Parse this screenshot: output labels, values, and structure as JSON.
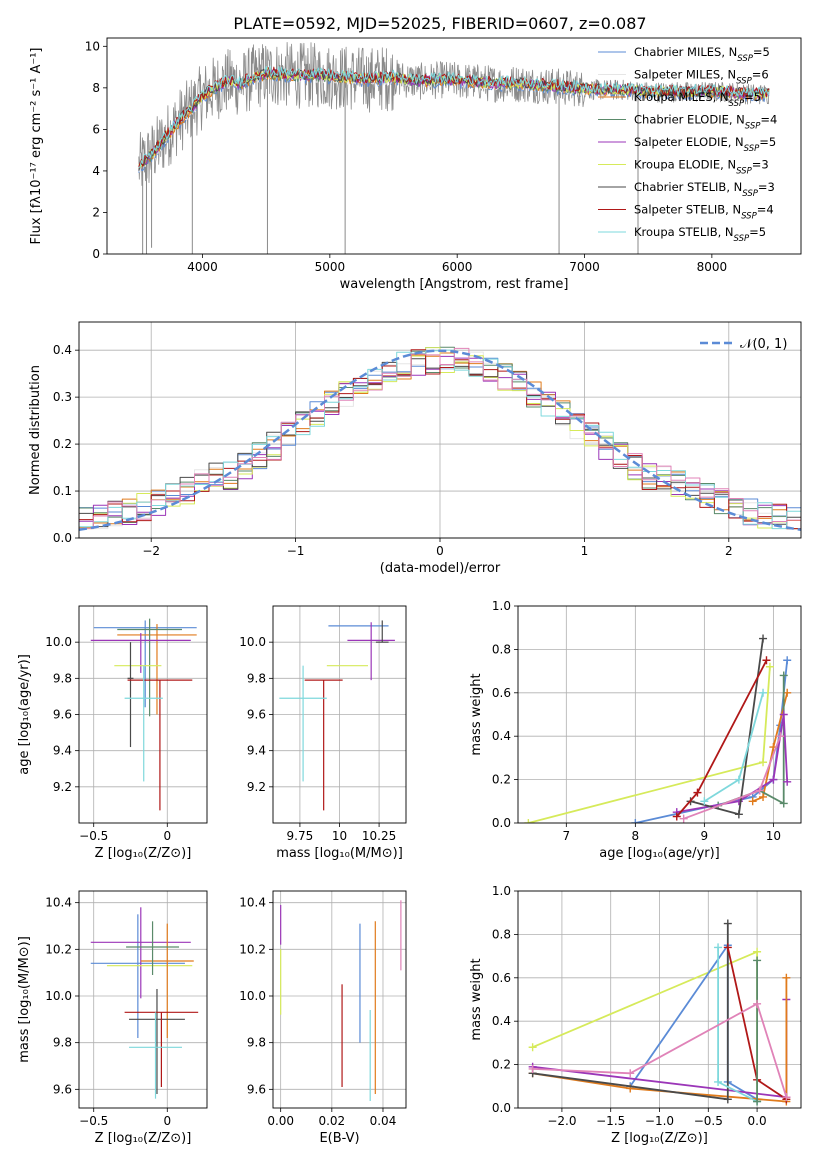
{
  "figure_title": "PLATE=0592, MJD=52025, FIBERID=0607, z=0.087",
  "colors": {
    "Chabrier MILES": "#5b8bd6",
    "Salpeter MILES": "#e6e6e6",
    "Kroupa MILES": "#e07b1c",
    "Chabrier ELODIE": "#5a8a6a",
    "Salpeter ELODIE": "#9b36b8",
    "Kroupa ELODIE": "#d6ea5a",
    "Chabrier STELIB": "#4a4a4a",
    "Salpeter STELIB": "#b01818",
    "Kroupa STELIB": "#7ed8dc",
    "pink": "#e083b8",
    "gray": "#8a8a8a"
  },
  "chart_data": [
    {
      "id": "spectrum",
      "type": "line",
      "xlabel": "wavelength [Angstrom, rest frame]",
      "ylabel": "Flux [fλ10⁻¹⁷ erg cm⁻² s⁻¹ A⁻¹]",
      "xlim": [
        3250,
        8700
      ],
      "ylim": [
        0,
        10.4
      ],
      "xticks": [
        4000,
        5000,
        6000,
        7000,
        8000
      ],
      "yticks": [
        0,
        2,
        4,
        6,
        8,
        10
      ],
      "legend_position": "right",
      "legend": [
        "Chabrier MILES, N_SSP=5",
        "Salpeter MILES, N_SSP=6",
        "Kroupa MILES, N_SSP=5",
        "Chabrier ELODIE, N_SSP=4",
        "Salpeter ELODIE, N_SSP=5",
        "Kroupa ELODIE, N_SSP=3",
        "Chabrier STELIB, N_SSP=3",
        "Salpeter STELIB, N_SSP=4",
        "Kroupa STELIB, N_SSP=5"
      ],
      "data_x": [
        3500,
        3600,
        3700,
        3800,
        3900,
        4000,
        4100,
        4200,
        4300,
        4400,
        4500,
        4700,
        4900,
        5100,
        5300,
        5500,
        5700,
        5900,
        6100,
        6300,
        6500,
        6700,
        6900,
        7100,
        7300,
        7500,
        7700,
        7900,
        8100,
        8300,
        8450
      ],
      "data_y": [
        4.2,
        4.8,
        5.5,
        6.3,
        6.9,
        7.6,
        8.0,
        8.3,
        8.2,
        8.5,
        8.7,
        8.6,
        8.6,
        8.5,
        8.4,
        8.5,
        8.3,
        8.4,
        8.3,
        8.2,
        8.2,
        8.1,
        8.0,
        7.9,
        7.9,
        7.8,
        7.8,
        7.8,
        7.8,
        7.7,
        7.7
      ]
    },
    {
      "id": "residuals",
      "type": "histogram",
      "xlabel": "(data-model)/error",
      "ylabel": "Normed distribution",
      "xlim": [
        -2.5,
        2.5
      ],
      "ylim": [
        0,
        0.46
      ],
      "xticks": [
        -2,
        -1,
        0,
        1,
        2
      ],
      "yticks": [
        0.0,
        0.1,
        0.2,
        0.3,
        0.4
      ],
      "legend": [
        "𝒩(0, 1)"
      ],
      "legend_position": "upper right",
      "bin_width": 0.1,
      "gaussian": {
        "mean": 0,
        "sigma": 1
      }
    },
    {
      "id": "age_vs_Z",
      "type": "errorbar",
      "xlabel": "Z [log₁₀(Z/Z⊙)]",
      "ylabel": "age  [log₁₀(age/yr)]",
      "xlim": [
        -0.6,
        0.27
      ],
      "ylim": [
        9.0,
        10.2
      ],
      "xticks": [
        -0.5,
        0.0
      ],
      "yticks": [
        9.2,
        9.4,
        9.6,
        9.8,
        10.0
      ],
      "points": [
        {
          "series": "Chabrier MILES",
          "x": -0.15,
          "xerr": 0.35,
          "y": 10.08,
          "yerr": [
            0.44,
            0.04
          ]
        },
        {
          "series": "Kroupa MILES",
          "x": -0.07,
          "xerr": 0.27,
          "y": 10.04,
          "yerr": [
            0.44,
            0.06
          ]
        },
        {
          "series": "Chabrier ELODIE",
          "x": -0.12,
          "xerr": 0.22,
          "y": 10.07,
          "yerr": [
            0.48,
            0.06
          ]
        },
        {
          "series": "Salpeter ELODIE",
          "x": -0.18,
          "xerr": 0.34,
          "y": 10.01,
          "yerr": [
            0.18,
            0.04
          ]
        },
        {
          "series": "Kroupa ELODIE",
          "x": -0.2,
          "xerr": 0.16,
          "y": 9.87,
          "yerr": [
            0.0,
            0.0
          ]
        },
        {
          "series": "Chabrier STELIB",
          "x": -0.25,
          "xerr": 0.02,
          "y": 9.8,
          "yerr": [
            0.38,
            0.2
          ]
        },
        {
          "series": "Salpeter STELIB",
          "x": -0.05,
          "xerr": 0.22,
          "y": 9.79,
          "yerr": [
            0.72,
            0.0
          ]
        },
        {
          "series": "Kroupa STELIB",
          "x": -0.16,
          "xerr": 0.13,
          "y": 9.69,
          "yerr": [
            0.46,
            0.18
          ]
        }
      ]
    },
    {
      "id": "age_vs_mass",
      "type": "errorbar",
      "xlabel": "mass [log₁₀(M/M⊙)]",
      "ylabel": "",
      "xlim": [
        9.58,
        10.42
      ],
      "ylim": [
        9.0,
        10.2
      ],
      "xticks": [
        9.75,
        10.0,
        10.25
      ],
      "yticks": [
        9.2,
        9.4,
        9.6,
        9.8,
        10.0
      ],
      "points": [
        {
          "series": "Chabrier MILES",
          "x": 10.12,
          "xerr": 0.19,
          "y": 10.09,
          "yerr": [
            0.0,
            0.0
          ]
        },
        {
          "series": "Salpeter ELODIE",
          "x": 10.2,
          "xerr": 0.15,
          "y": 10.01,
          "yerr": [
            0.22,
            0.1
          ]
        },
        {
          "series": "Kroupa ELODIE",
          "x": 10.05,
          "xerr": 0.13,
          "y": 9.87,
          "yerr": [
            0.0,
            0.0
          ]
        },
        {
          "series": "Chabrier STELIB",
          "x": 10.27,
          "xerr": 0.04,
          "y": 10.0,
          "yerr": [
            0.0,
            0.12
          ]
        },
        {
          "series": "Salpeter STELIB",
          "x": 9.9,
          "xerr": 0.12,
          "y": 9.79,
          "yerr": [
            0.72,
            0.0
          ]
        },
        {
          "series": "Kroupa STELIB",
          "x": 9.77,
          "xerr": 0.15,
          "y": 9.69,
          "yerr": [
            0.46,
            0.18
          ]
        }
      ]
    },
    {
      "id": "weight_vs_age",
      "type": "line",
      "xlabel": "age  [log₁₀(age/yr)]",
      "ylabel": "mass weight",
      "xlim": [
        6.3,
        10.4
      ],
      "ylim": [
        0.0,
        1.0
      ],
      "xticks": [
        7,
        8,
        9,
        10
      ],
      "yticks": [
        0.0,
        0.2,
        0.4,
        0.6,
        0.8,
        1.0
      ],
      "series": [
        {
          "color_key": "Chabrier MILES",
          "x": [
            8.0,
            9.7,
            10.0,
            10.1,
            10.2
          ],
          "y": [
            0.0,
            0.12,
            0.2,
            0.45,
            0.75
          ]
        },
        {
          "color_key": "Kroupa MILES",
          "x": [
            9.7,
            9.85,
            10.0,
            10.2
          ],
          "y": [
            0.1,
            0.12,
            0.35,
            0.6
          ]
        },
        {
          "color_key": "Chabrier ELODIE",
          "x": [
            9.2,
            9.8,
            10.15,
            10.15
          ],
          "y": [
            0.08,
            0.15,
            0.09,
            0.68
          ]
        },
        {
          "color_key": "Salpeter ELODIE",
          "x": [
            8.6,
            9.5,
            10.0,
            10.15,
            10.2
          ],
          "y": [
            0.05,
            0.1,
            0.2,
            0.5,
            0.19
          ]
        },
        {
          "color_key": "Kroupa ELODIE",
          "x": [
            6.45,
            9.85,
            9.95
          ],
          "y": [
            0.0,
            0.28,
            0.72
          ]
        },
        {
          "color_key": "Chabrier STELIB",
          "x": [
            8.8,
            9.5,
            9.85
          ],
          "y": [
            0.1,
            0.04,
            0.85
          ]
        },
        {
          "color_key": "Salpeter STELIB",
          "x": [
            8.6,
            8.9,
            9.9
          ],
          "y": [
            0.03,
            0.14,
            0.75
          ]
        },
        {
          "color_key": "Kroupa STELIB",
          "x": [
            9.0,
            9.5,
            9.85
          ],
          "y": [
            0.1,
            0.2,
            0.6
          ]
        },
        {
          "color_key": "pink",
          "x": [
            8.7,
            9.8,
            10.1
          ],
          "y": [
            0.02,
            0.15,
            0.4
          ]
        }
      ]
    },
    {
      "id": "mass_vs_Z",
      "type": "errorbar",
      "xlabel": "Z [log₁₀(Z/Z⊙)]",
      "ylabel": "mass [log₁₀(M/M⊙)]",
      "xlim": [
        -0.6,
        0.27
      ],
      "ylim": [
        9.52,
        10.45
      ],
      "xticks": [
        -0.5,
        0.0
      ],
      "yticks": [
        9.6,
        9.8,
        10.0,
        10.2,
        10.4
      ],
      "points": [
        {
          "series": "Chabrier MILES",
          "x": -0.2,
          "xerr": 0.32,
          "y": 10.14,
          "yerr": [
            0.32,
            0.21
          ]
        },
        {
          "series": "Salpeter ELODIE",
          "x": -0.18,
          "xerr": 0.34,
          "y": 10.23,
          "yerr": [
            0.24,
            0.15
          ]
        },
        {
          "series": "Kroupa ELODIE",
          "x": -0.12,
          "xerr": 0.29,
          "y": 10.13,
          "yerr": [
            0.0,
            0.0
          ]
        },
        {
          "series": "Kroupa MILES",
          "x": 0.0,
          "xerr": 0.18,
          "y": 10.15,
          "yerr": [
            0.33,
            0.16
          ]
        },
        {
          "series": "Chabrier ELODIE",
          "x": -0.1,
          "xerr": 0.18,
          "y": 10.21,
          "yerr": [
            0.12,
            0.11
          ]
        },
        {
          "series": "Chabrier STELIB",
          "x": -0.07,
          "xerr": 0.19,
          "y": 9.9,
          "yerr": [
            0.32,
            0.13
          ]
        },
        {
          "series": "Salpeter STELIB",
          "x": -0.04,
          "xerr": 0.25,
          "y": 9.93,
          "yerr": [
            0.32,
            0.0
          ]
        },
        {
          "series": "Kroupa STELIB",
          "x": -0.08,
          "xerr": 0.18,
          "y": 9.78,
          "yerr": [
            0.22,
            0.15
          ]
        }
      ]
    },
    {
      "id": "mass_vs_EBV",
      "type": "errorbar",
      "xlabel": "E(B-V)",
      "ylabel": "",
      "xlim": [
        -0.003,
        0.049
      ],
      "ylim": [
        9.52,
        10.45
      ],
      "xticks": [
        0.0,
        0.02,
        0.04
      ],
      "yticks": [
        9.6,
        9.8,
        10.0,
        10.2,
        10.4
      ],
      "points": [
        {
          "series": "Salpeter ELODIE",
          "x": 0.0,
          "y": 10.3,
          "yerr": [
            0.08,
            0.09
          ]
        },
        {
          "series": "Kroupa ELODIE",
          "x": 0.0,
          "y": 10.0,
          "yerr": [
            0.08,
            0.2
          ]
        },
        {
          "series": "Chabrier MILES",
          "x": 0.031,
          "y": 10.0,
          "yerr": [
            0.2,
            0.31
          ]
        },
        {
          "series": "Salpeter STELIB",
          "x": 0.024,
          "y": 9.83,
          "yerr": [
            0.22,
            0.22
          ]
        },
        {
          "series": "Kroupa STELIB",
          "x": 0.035,
          "y": 9.75,
          "yerr": [
            0.2,
            0.19
          ]
        },
        {
          "series": "Kroupa MILES",
          "x": 0.037,
          "y": 9.95,
          "yerr": [
            0.37,
            0.37
          ]
        },
        {
          "series": "pink",
          "x": 0.047,
          "y": 10.25,
          "yerr": [
            0.14,
            0.16
          ]
        }
      ]
    },
    {
      "id": "weight_vs_Z",
      "type": "line",
      "xlabel": "Z [log₁₀(Z/Z⊙)]",
      "ylabel": "mass weight",
      "xlim": [
        -2.45,
        0.45
      ],
      "ylim": [
        0.0,
        1.0
      ],
      "xticks": [
        -2.0,
        -1.5,
        -1.0,
        -0.5,
        0.0
      ],
      "yticks": [
        0.0,
        0.2,
        0.4,
        0.6,
        0.8,
        1.0
      ],
      "series": [
        {
          "color_key": "Kroupa ELODIE",
          "x": [
            -2.3,
            0.0,
            0.0
          ],
          "y": [
            0.28,
            0.72,
            0.04
          ]
        },
        {
          "color_key": "Chabrier MILES",
          "x": [
            -1.3,
            -0.3,
            -0.3,
            0.0
          ],
          "y": [
            0.1,
            0.75,
            0.12,
            0.04
          ]
        },
        {
          "color_key": "Salpeter ELODIE",
          "x": [
            -2.3,
            0.3,
            0.3
          ],
          "y": [
            0.19,
            0.05,
            0.5
          ]
        },
        {
          "color_key": "Kroupa MILES",
          "x": [
            -2.3,
            -1.3,
            0.3,
            0.3
          ],
          "y": [
            0.16,
            0.09,
            0.03,
            0.6
          ]
        },
        {
          "color_key": "Chabrier STELIB",
          "x": [
            -2.3,
            -0.3,
            -0.3
          ],
          "y": [
            0.16,
            0.04,
            0.85
          ]
        },
        {
          "color_key": "Salpeter STELIB",
          "x": [
            -0.3,
            0.0,
            0.3
          ],
          "y": [
            0.74,
            0.13,
            0.04
          ]
        },
        {
          "color_key": "Kroupa STELIB",
          "x": [
            -0.4,
            -0.4,
            0.0
          ],
          "y": [
            0.74,
            0.12,
            0.03
          ]
        },
        {
          "color_key": "Chabrier ELODIE",
          "x": [
            0.0,
            0.0
          ],
          "y": [
            0.68,
            0.03
          ]
        },
        {
          "color_key": "pink",
          "x": [
            -2.3,
            -1.3,
            0.0,
            0.3
          ],
          "y": [
            0.18,
            0.16,
            0.48,
            0.05
          ]
        }
      ]
    }
  ]
}
